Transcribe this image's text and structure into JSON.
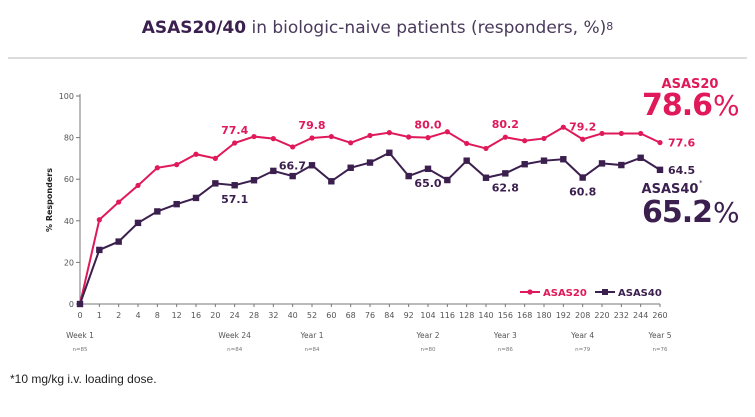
{
  "title": {
    "bold": "ASAS20/40",
    "rest": " in biologic-naive patients (responders, %)",
    "ref": "8"
  },
  "footnote": "*10 mg/kg i.v. loading dose.",
  "chart_data": {
    "type": "line",
    "ylabel": "% Responders",
    "ylim": [
      0,
      100
    ],
    "yticks": [
      0,
      20,
      40,
      60,
      80,
      100
    ],
    "categories": [
      "0",
      "1",
      "2",
      "4",
      "8",
      "12",
      "16",
      "20",
      "24",
      "28",
      "32",
      "40",
      "52",
      "60",
      "68",
      "76",
      "84",
      "92",
      "104",
      "116",
      "128",
      "140",
      "156",
      "168",
      "180",
      "192",
      "208",
      "220",
      "232",
      "244",
      "260"
    ],
    "milestones": [
      {
        "category": "0",
        "label": "Week 1",
        "n": "n=85"
      },
      {
        "category": "24",
        "label": "Week 24",
        "n": "n=84"
      },
      {
        "category": "52",
        "label": "Year 1",
        "n": "n=84"
      },
      {
        "category": "104",
        "label": "Year 2",
        "n": "n=80"
      },
      {
        "category": "156",
        "label": "Year 3",
        "n": "n=86"
      },
      {
        "category": "208",
        "label": "Year 4",
        "n": "n=79"
      },
      {
        "category": "260",
        "label": "Year 5",
        "n": "n=76"
      }
    ],
    "series": [
      {
        "name": "ASAS20",
        "color": "#e0195a",
        "marker": "circle",
        "values": [
          0,
          40.5,
          49,
          57,
          65.5,
          67,
          72,
          70,
          77.4,
          80.5,
          79.5,
          75.5,
          79.8,
          80.5,
          77.5,
          81,
          82.4,
          80.3,
          80.0,
          82.8,
          77.2,
          74.8,
          80.2,
          78.5,
          79.6,
          85,
          79.2,
          82,
          82,
          82,
          77.6
        ],
        "labels": [
          {
            "category": "24",
            "text": "77.4"
          },
          {
            "category": "52",
            "text": "79.8"
          },
          {
            "category": "104",
            "text": "80.0"
          },
          {
            "category": "156",
            "text": "80.2"
          },
          {
            "category": "208",
            "text": "79.2"
          },
          {
            "category": "260",
            "text": "77.6"
          }
        ]
      },
      {
        "name": "ASAS40",
        "color": "#3b1f4e",
        "marker": "square",
        "values": [
          0,
          26,
          30,
          39,
          44.5,
          48,
          51,
          58,
          57.1,
          59.5,
          64,
          61.5,
          66.7,
          59,
          65.5,
          68,
          72.7,
          61.5,
          65.0,
          59.6,
          68.9,
          60.7,
          62.8,
          67.2,
          68.9,
          69.6,
          60.8,
          67.6,
          66.8,
          70.3,
          64.5
        ],
        "labels": [
          {
            "category": "24",
            "text": "57.1"
          },
          {
            "category": "52",
            "text": "66.7"
          },
          {
            "category": "104",
            "text": "65.0"
          },
          {
            "category": "156",
            "text": "62.8"
          },
          {
            "category": "208",
            "text": "60.8"
          },
          {
            "category": "260",
            "text": "64.5"
          }
        ]
      }
    ],
    "legend": "bottom-right",
    "callouts": [
      {
        "series": "ASAS20",
        "label": "ASAS20",
        "value": "78.6",
        "unit": "%"
      },
      {
        "series": "ASAS40",
        "label": "ASAS40",
        "sup": "*",
        "value": "65.2",
        "unit": "%"
      }
    ]
  }
}
